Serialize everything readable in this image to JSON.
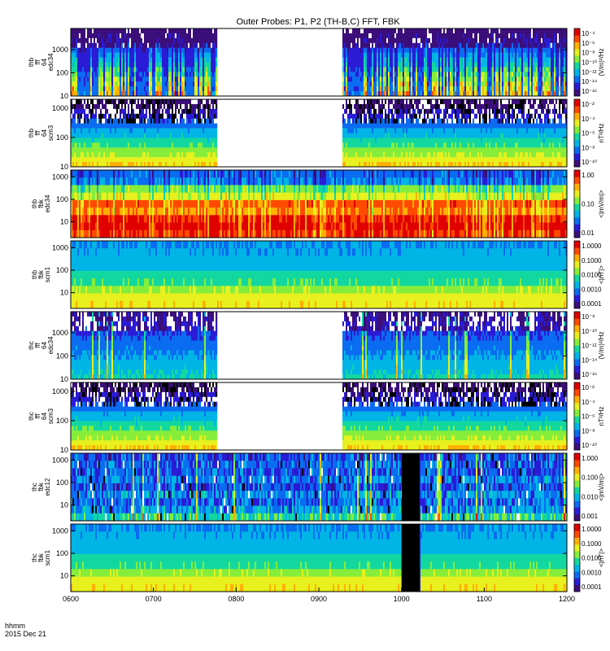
{
  "chart_data": {
    "type": "heatmap",
    "title": "Outer Probes: P1, P2 (TH-B,C) FFT, FBK",
    "time_axis": {
      "range": [
        "0600",
        "1200"
      ],
      "ticks": [
        "0600",
        "0700",
        "0800",
        "0900",
        "1000",
        "1100",
        "1200"
      ],
      "label_line1": "hhmm",
      "label_line2": "2015 Dec 21"
    },
    "colors": [
      "#3b0e7a",
      "#2a1bd6",
      "#0a6cf0",
      "#00b4e6",
      "#12d8a0",
      "#86ee3a",
      "#e8f01e",
      "#ffb000",
      "#ff4a00",
      "#e00000"
    ],
    "panels": [
      {
        "label": [
          "thb",
          "fff",
          "64",
          "edc34"
        ],
        "yscale": "log",
        "ylim": [
          10,
          8000
        ],
        "yticks": [
          "10",
          "100",
          "1000"
        ],
        "colorbar_label": "(V/m)²/Hz",
        "colorbar_ticks": [
          "10⁻⁴",
          "10⁻⁶",
          "10⁻⁸",
          "10⁻¹⁰",
          "10⁻¹²",
          "10⁻¹⁴",
          "10⁻¹⁶"
        ],
        "data_gaps_hhmm": [
          [
            "0746",
            "0916"
          ]
        ],
        "pattern": "spiky"
      },
      {
        "label": [
          "thb",
          "fff",
          "64",
          "scm3"
        ],
        "yscale": "log",
        "ylim": [
          10,
          2000
        ],
        "yticks": [
          "10",
          "100",
          "1000"
        ],
        "colorbar_label": "nT²/Hz",
        "colorbar_ticks": [
          "10⁻²",
          "10⁻⁴",
          "10⁻⁶",
          "10⁻⁸",
          "10⁻¹⁰"
        ],
        "data_gaps_hhmm": [
          [
            "0746",
            "0916"
          ]
        ],
        "pattern": "scm"
      },
      {
        "label": [
          "thb",
          "fbk",
          "edc34"
        ],
        "yscale": "log",
        "ylim": [
          2,
          2000
        ],
        "yticks": [
          "10",
          "100",
          "1000"
        ],
        "colorbar_label": "<|mV/m|>",
        "colorbar_ticks": [
          "1.00",
          "0.10",
          "0.01"
        ],
        "data_gaps_hhmm": [],
        "pattern": "fbk_e_hot"
      },
      {
        "label": [
          "thb",
          "fbk",
          "scm1"
        ],
        "yscale": "log",
        "ylim": [
          2,
          2000
        ],
        "yticks": [
          "10",
          "100",
          "1000"
        ],
        "colorbar_label": "<|nT|>",
        "colorbar_ticks": [
          "1.0000",
          "0.1000",
          "0.0100",
          "0.0010",
          "0.0001"
        ],
        "data_gaps_hhmm": [],
        "pattern": "fbk_b"
      },
      {
        "label": [
          "thc",
          "fff",
          "64",
          "edc34"
        ],
        "yscale": "log",
        "ylim": [
          10,
          8000
        ],
        "yticks": [
          "10",
          "100",
          "1000"
        ],
        "colorbar_label": "(V/m)²/Hz",
        "colorbar_ticks": [
          "10⁻⁸",
          "10⁻¹⁰",
          "10⁻¹²",
          "10⁻¹⁴",
          "10⁻¹⁶"
        ],
        "data_gaps_hhmm": [
          [
            "0746",
            "0916"
          ]
        ],
        "pattern": "efield_low"
      },
      {
        "label": [
          "thc",
          "fff",
          "64",
          "scm3"
        ],
        "yscale": "log",
        "ylim": [
          10,
          2000
        ],
        "yticks": [
          "10",
          "100",
          "1000"
        ],
        "colorbar_label": "nT²/Hz",
        "colorbar_ticks": [
          "10⁻²",
          "10⁻⁴",
          "10⁻⁶",
          "10⁻⁸",
          "10⁻¹⁰"
        ],
        "data_gaps_hhmm": [
          [
            "0746",
            "0916"
          ]
        ],
        "pattern": "scm"
      },
      {
        "label": [
          "thc",
          "fbk",
          "edc12"
        ],
        "yscale": "log",
        "ylim": [
          2,
          2000
        ],
        "yticks": [
          "10",
          "100",
          "1000"
        ],
        "colorbar_label": "<|mV/m|>",
        "colorbar_ticks": [
          "1.000",
          "0.100",
          "0.010",
          "0.001"
        ],
        "data_gaps_hhmm": [],
        "black_band_hhmm": [
          "1000",
          "1013"
        ],
        "pattern": "fbk_e_cool"
      },
      {
        "label": [
          "thc",
          "fbk",
          "scm1"
        ],
        "yscale": "log",
        "ylim": [
          2,
          2000
        ],
        "yticks": [
          "10",
          "100",
          "1000"
        ],
        "colorbar_label": "<|nT|>",
        "colorbar_ticks": [
          "1.0000",
          "0.1000",
          "0.0100",
          "0.0010",
          "0.0001"
        ],
        "data_gaps_hhmm": [],
        "black_band_hhmm": [
          "1000",
          "1013"
        ],
        "pattern": "fbk_b"
      }
    ]
  }
}
